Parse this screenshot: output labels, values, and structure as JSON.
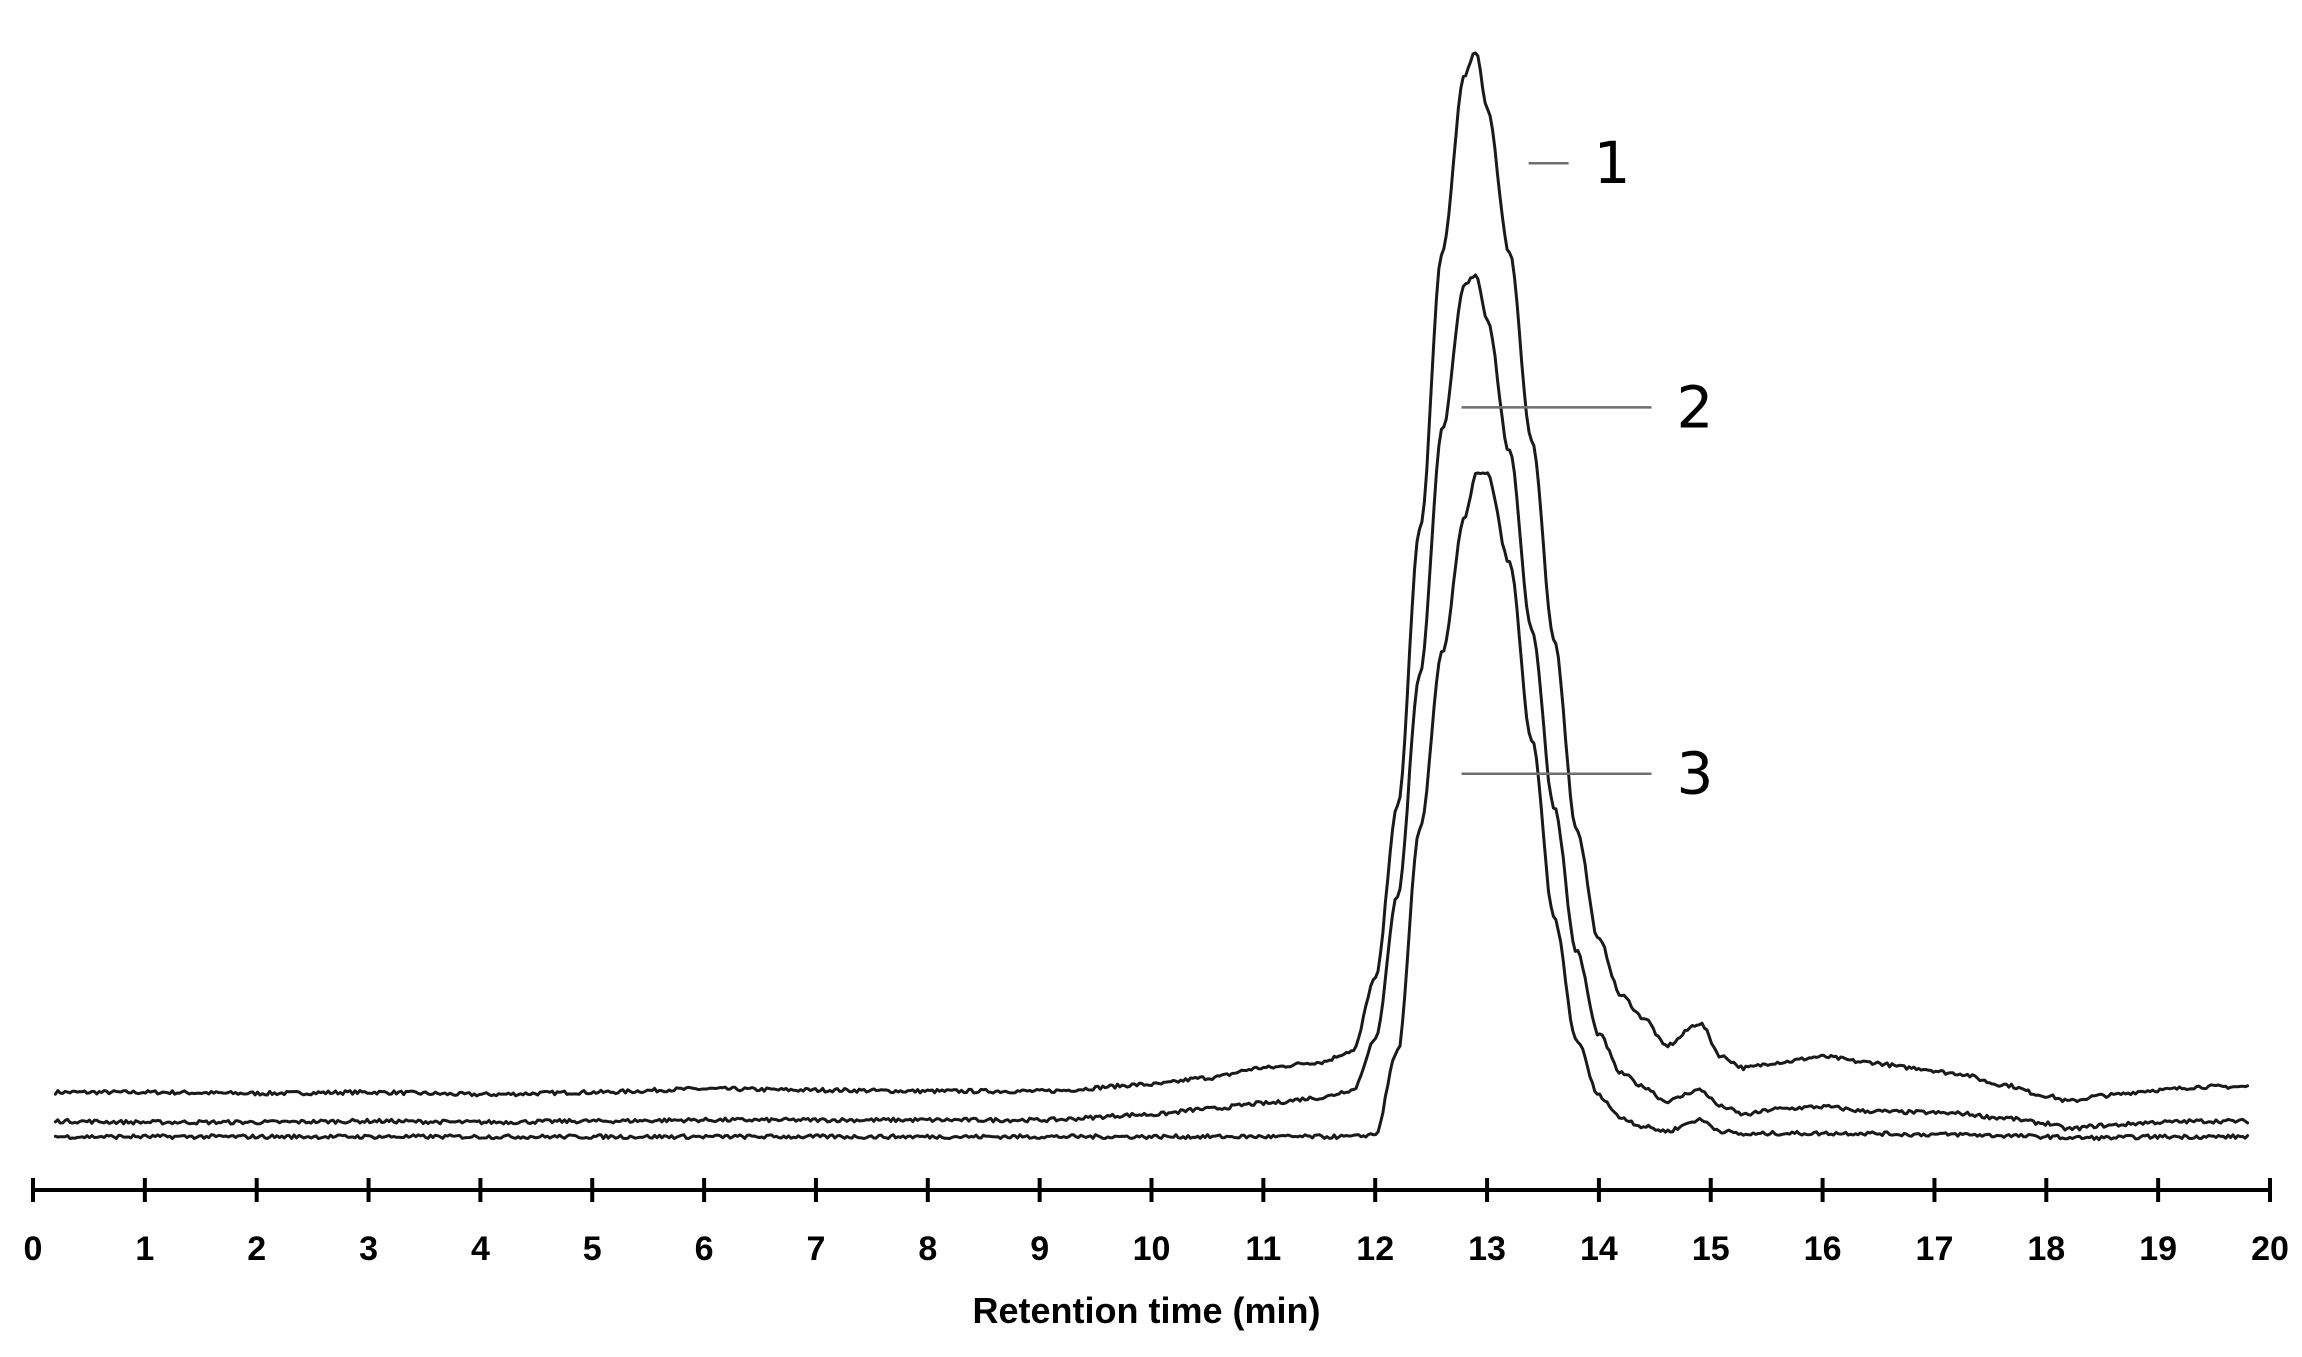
{
  "chart_data": {
    "type": "line",
    "title": "",
    "xlabel": "Retention time (min)",
    "ylabel": "",
    "xlim": [
      0,
      20
    ],
    "x_ticks": [
      0,
      1,
      2,
      3,
      4,
      5,
      6,
      7,
      8,
      9,
      10,
      11,
      12,
      13,
      14,
      15,
      16,
      17,
      18,
      19,
      20
    ],
    "tick_labels": [
      "0",
      "1",
      "2",
      "3",
      "4",
      "5",
      "6",
      "7",
      "8",
      "9",
      "10",
      "11",
      "12",
      "13",
      "14",
      "15",
      "16",
      "17",
      "18",
      "19",
      "20"
    ],
    "y_axis_shown": false,
    "grid": false,
    "legend": "none",
    "ylim": [
      0,
      100
    ],
    "annotations": [
      {
        "label": "1",
        "series_index": 0,
        "x": 13.3,
        "y": 88
      },
      {
        "label": "2",
        "series_index": 1,
        "x": 12.7,
        "y": 66
      },
      {
        "label": "3",
        "series_index": 2,
        "x": 12.7,
        "y": 33
      }
    ],
    "series": [
      {
        "x": [
          0.2,
          1,
          2,
          3,
          4,
          5,
          6,
          7,
          8,
          9,
          10,
          10.5,
          11,
          11.5,
          11.8,
          12,
          12.2,
          12.4,
          12.6,
          12.8,
          12.9,
          13.0,
          13.2,
          13.4,
          13.6,
          13.8,
          14.0,
          14.2,
          14.4,
          14.6,
          14.9,
          15.1,
          15.3,
          15.6,
          16.0,
          16.4,
          16.8,
          17.2,
          17.6,
          18.0,
          18.2,
          18.5,
          19.0,
          19.4,
          19.8
        ],
        "y": [
          4.3,
          4.3,
          4.2,
          4.3,
          4.1,
          4.3,
          4.6,
          4.5,
          4.4,
          4.4,
          5.0,
          5.6,
          6.5,
          7.0,
          8.0,
          14.5,
          30,
          55,
          80,
          96,
          98,
          93,
          80,
          63,
          45,
          28,
          18,
          13,
          11,
          8.5,
          10.5,
          7.5,
          6.5,
          7.0,
          7.5,
          7.0,
          6.5,
          6.0,
          5.0,
          4.0,
          3.5,
          4.0,
          4.5,
          4.8,
          4.8
        ]
      },
      {
        "x": [
          0.2,
          1,
          2,
          3,
          4,
          5,
          6,
          7,
          8,
          9,
          10,
          10.5,
          11,
          11.5,
          11.8,
          12,
          12.2,
          12.4,
          12.6,
          12.8,
          12.9,
          13.0,
          13.2,
          13.4,
          13.6,
          13.8,
          14.0,
          14.2,
          14.4,
          14.6,
          14.9,
          15.1,
          15.3,
          15.6,
          16.0,
          16.4,
          16.8,
          17.2,
          17.6,
          18.0,
          18.2,
          18.5,
          19.0,
          19.4,
          19.8
        ],
        "y": [
          1.7,
          1.6,
          1.6,
          1.7,
          1.6,
          1.7,
          1.8,
          1.8,
          1.8,
          1.8,
          2.3,
          2.8,
          3.3,
          3.8,
          4.5,
          9.0,
          22,
          42,
          64,
          77,
          78,
          74,
          62,
          46,
          30,
          17,
          9.5,
          6.0,
          4.8,
          3.5,
          4.5,
          3.0,
          2.3,
          2.8,
          3.0,
          2.6,
          2.5,
          2.4,
          2.0,
          1.5,
          1.0,
          1.3,
          1.6,
          1.7,
          1.7
        ]
      },
      {
        "x": [
          0.2,
          1,
          2,
          3,
          4,
          5,
          6,
          7,
          8,
          9,
          10,
          10.5,
          11,
          11.5,
          11.8,
          12,
          12.2,
          12.4,
          12.6,
          12.8,
          12.9,
          13.0,
          13.2,
          13.4,
          13.6,
          13.8,
          14.0,
          14.2,
          14.4,
          14.6,
          14.9,
          15.1,
          15.3,
          15.6,
          16.0,
          16.4,
          16.8,
          17.2,
          17.6,
          18.0,
          18.2,
          18.5,
          19.0,
          19.4,
          19.8
        ],
        "y": [
          0.3,
          0.3,
          0.3,
          0.3,
          0.3,
          0.3,
          0.3,
          0.3,
          0.3,
          0.3,
          0.3,
          0.3,
          0.3,
          0.3,
          0.3,
          0.5,
          8,
          28,
          44,
          56,
          60,
          60,
          52,
          36,
          20,
          9,
          4,
          2,
          1.2,
          0.8,
          1.8,
          0.8,
          0.5,
          0.6,
          0.6,
          0.6,
          0.5,
          0.5,
          0.4,
          0.3,
          0.2,
          0.2,
          0.3,
          0.3,
          0.3
        ]
      }
    ]
  }
}
